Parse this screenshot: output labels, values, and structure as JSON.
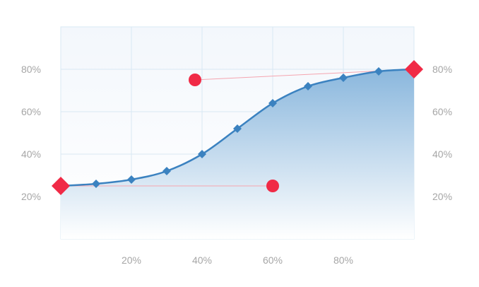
{
  "chart_data": {
    "type": "area",
    "title": "",
    "xlabel": "",
    "ylabel": "",
    "xlim": [
      0,
      1
    ],
    "ylim": [
      0,
      1
    ],
    "grid": true,
    "legend": "none",
    "x_ticks": [
      {
        "value": 0.2,
        "label": "20%"
      },
      {
        "value": 0.4,
        "label": "40%"
      },
      {
        "value": 0.6,
        "label": "60%"
      },
      {
        "value": 0.8,
        "label": "80%"
      }
    ],
    "y_ticks": [
      {
        "value": 0.2,
        "label": "20%"
      },
      {
        "value": 0.4,
        "label": "40%"
      },
      {
        "value": 0.6,
        "label": "60%"
      },
      {
        "value": 0.8,
        "label": "80%"
      }
    ],
    "series": [
      {
        "kind": "curve",
        "x": [
          0.0,
          0.1,
          0.2,
          0.3,
          0.4,
          0.5,
          0.6,
          0.7,
          0.8,
          0.9,
          1.0
        ],
        "y": [
          0.25,
          0.26,
          0.28,
          0.32,
          0.4,
          0.52,
          0.64,
          0.72,
          0.76,
          0.79,
          0.8
        ]
      },
      {
        "kind": "control-handle",
        "x": [
          0.0,
          0.6
        ],
        "y": [
          0.25,
          0.25
        ]
      },
      {
        "kind": "control-handle",
        "x": [
          1.0,
          0.38
        ],
        "y": [
          0.8,
          0.75
        ]
      }
    ],
    "colors": {
      "line": "#3b82c0",
      "marker": "#3b82c0",
      "area_top": "#8ab7dd",
      "area_bottom": "#ffffff",
      "plot_bg_top": "#f3f7fc",
      "plot_bg_bottom": "#ffffff",
      "grid": "#d9e8f3",
      "endpoint": "#f02a46",
      "handle_line": "#f5a5b0"
    }
  }
}
